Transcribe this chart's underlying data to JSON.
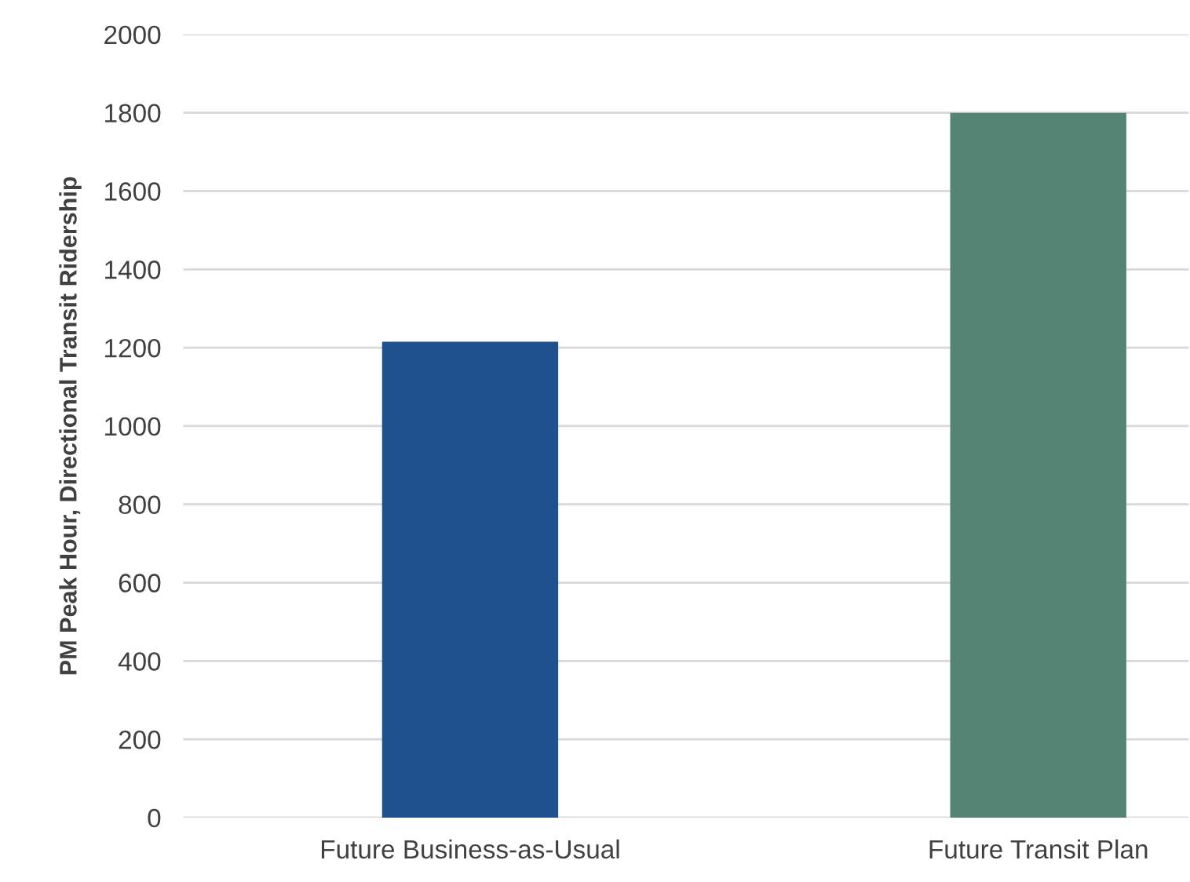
{
  "chart_data": {
    "type": "bar",
    "ylabel": "PM Peak Hour, Directional Transit Ridership",
    "categories": [
      "Future Business-as-Usual",
      "Future Transit Plan"
    ],
    "values": [
      1215,
      1800
    ],
    "colors": [
      "#1f518f",
      "#548474"
    ],
    "ylim": [
      0,
      2000
    ],
    "yticks": [
      0,
      200,
      400,
      600,
      800,
      1000,
      1200,
      1400,
      1600,
      1800,
      2000
    ],
    "grid": "y",
    "legend": false
  }
}
